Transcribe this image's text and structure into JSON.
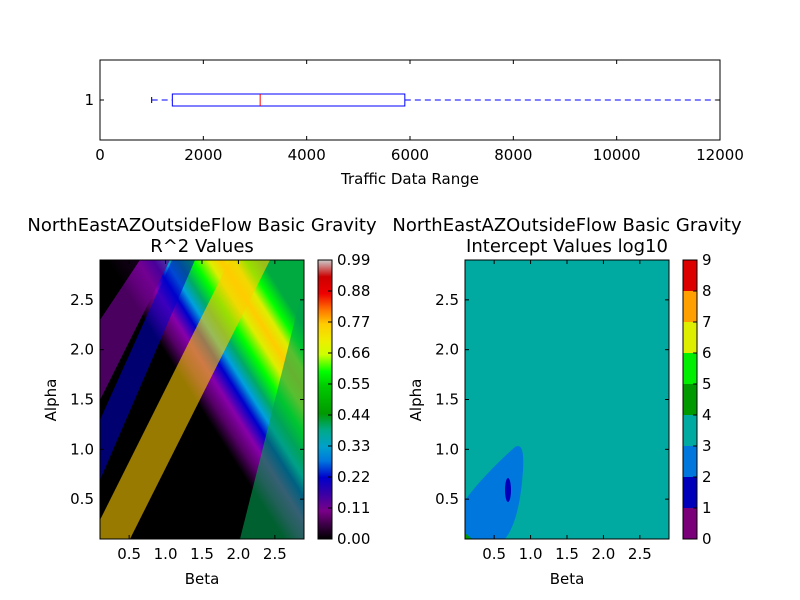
{
  "chart_data": [
    {
      "type": "boxplot",
      "orientation": "horizontal",
      "xlabel": "Traffic Data Range",
      "xlim": [
        0,
        12000
      ],
      "xticks": [
        "0",
        "2000",
        "4000",
        "6000",
        "8000",
        "10000",
        "12000"
      ],
      "yticks": [
        "1"
      ],
      "box": {
        "category": "1",
        "whisker_low": 1000,
        "q1": 1400,
        "median": 3100,
        "q3": 5900,
        "whisker_high": 12000
      },
      "colors": {
        "box": "#0000ff",
        "median": "#ff0000",
        "whisker": "#0000ff",
        "cap": "#000000"
      }
    },
    {
      "type": "heatmap",
      "subtype": "filled-contour",
      "title": "NorthEastAZOutsideFlow Basic Gravity\nR^2 Values",
      "xlabel": "Beta",
      "ylabel": "Alpha",
      "xlim": [
        0.1,
        2.9
      ],
      "ylim": [
        0.1,
        2.9
      ],
      "xticks": [
        "0.5",
        "1.0",
        "1.5",
        "2.0",
        "2.5"
      ],
      "yticks": [
        "0.5",
        "1.0",
        "1.5",
        "2.0",
        "2.5"
      ],
      "colormap": "nipy_spectral",
      "colorbar_ticks": [
        "0.00",
        "0.11",
        "0.22",
        "0.33",
        "0.44",
        "0.55",
        "0.66",
        "0.77",
        "0.88",
        "0.99"
      ],
      "colorbar_range": [
        0,
        0.99
      ],
      "pattern": "diagonal ridge of maximum R^2 (~0.70) along alpha ≈ beta, decreasing to ~0 toward top-left and ~0.45 toward bottom-right"
    },
    {
      "type": "heatmap",
      "subtype": "filled-contour",
      "title": "NorthEastAZOutsideFlow Basic Gravity\nIntercept Values log10",
      "xlabel": "Beta",
      "ylabel": "Alpha",
      "xlim": [
        0.1,
        2.9
      ],
      "ylim": [
        0.1,
        2.9
      ],
      "xticks": [
        "0.5",
        "1.0",
        "1.5",
        "2.0",
        "2.5"
      ],
      "yticks": [
        "0.5",
        "1.0",
        "1.5",
        "2.0",
        "2.5"
      ],
      "colorbar_ticks": [
        "0",
        "1",
        "2",
        "3",
        "4",
        "5",
        "6",
        "7",
        "8",
        "9"
      ],
      "levels": [
        0,
        1,
        2,
        3,
        4,
        5,
        6,
        7,
        8,
        9
      ],
      "level_colors": [
        "#7a007a",
        "#0000bb",
        "#0077dd",
        "#00aaa0",
        "#009900",
        "#00ee00",
        "#ddee00",
        "#ffa000",
        "#dd0000"
      ],
      "pattern": "mostly 3–4 everywhere; a 2–3 region near low alpha/beta, a small 1–2 spot near beta 0.7 alpha 0.6, a 4–5 corner at bottom-left"
    }
  ]
}
